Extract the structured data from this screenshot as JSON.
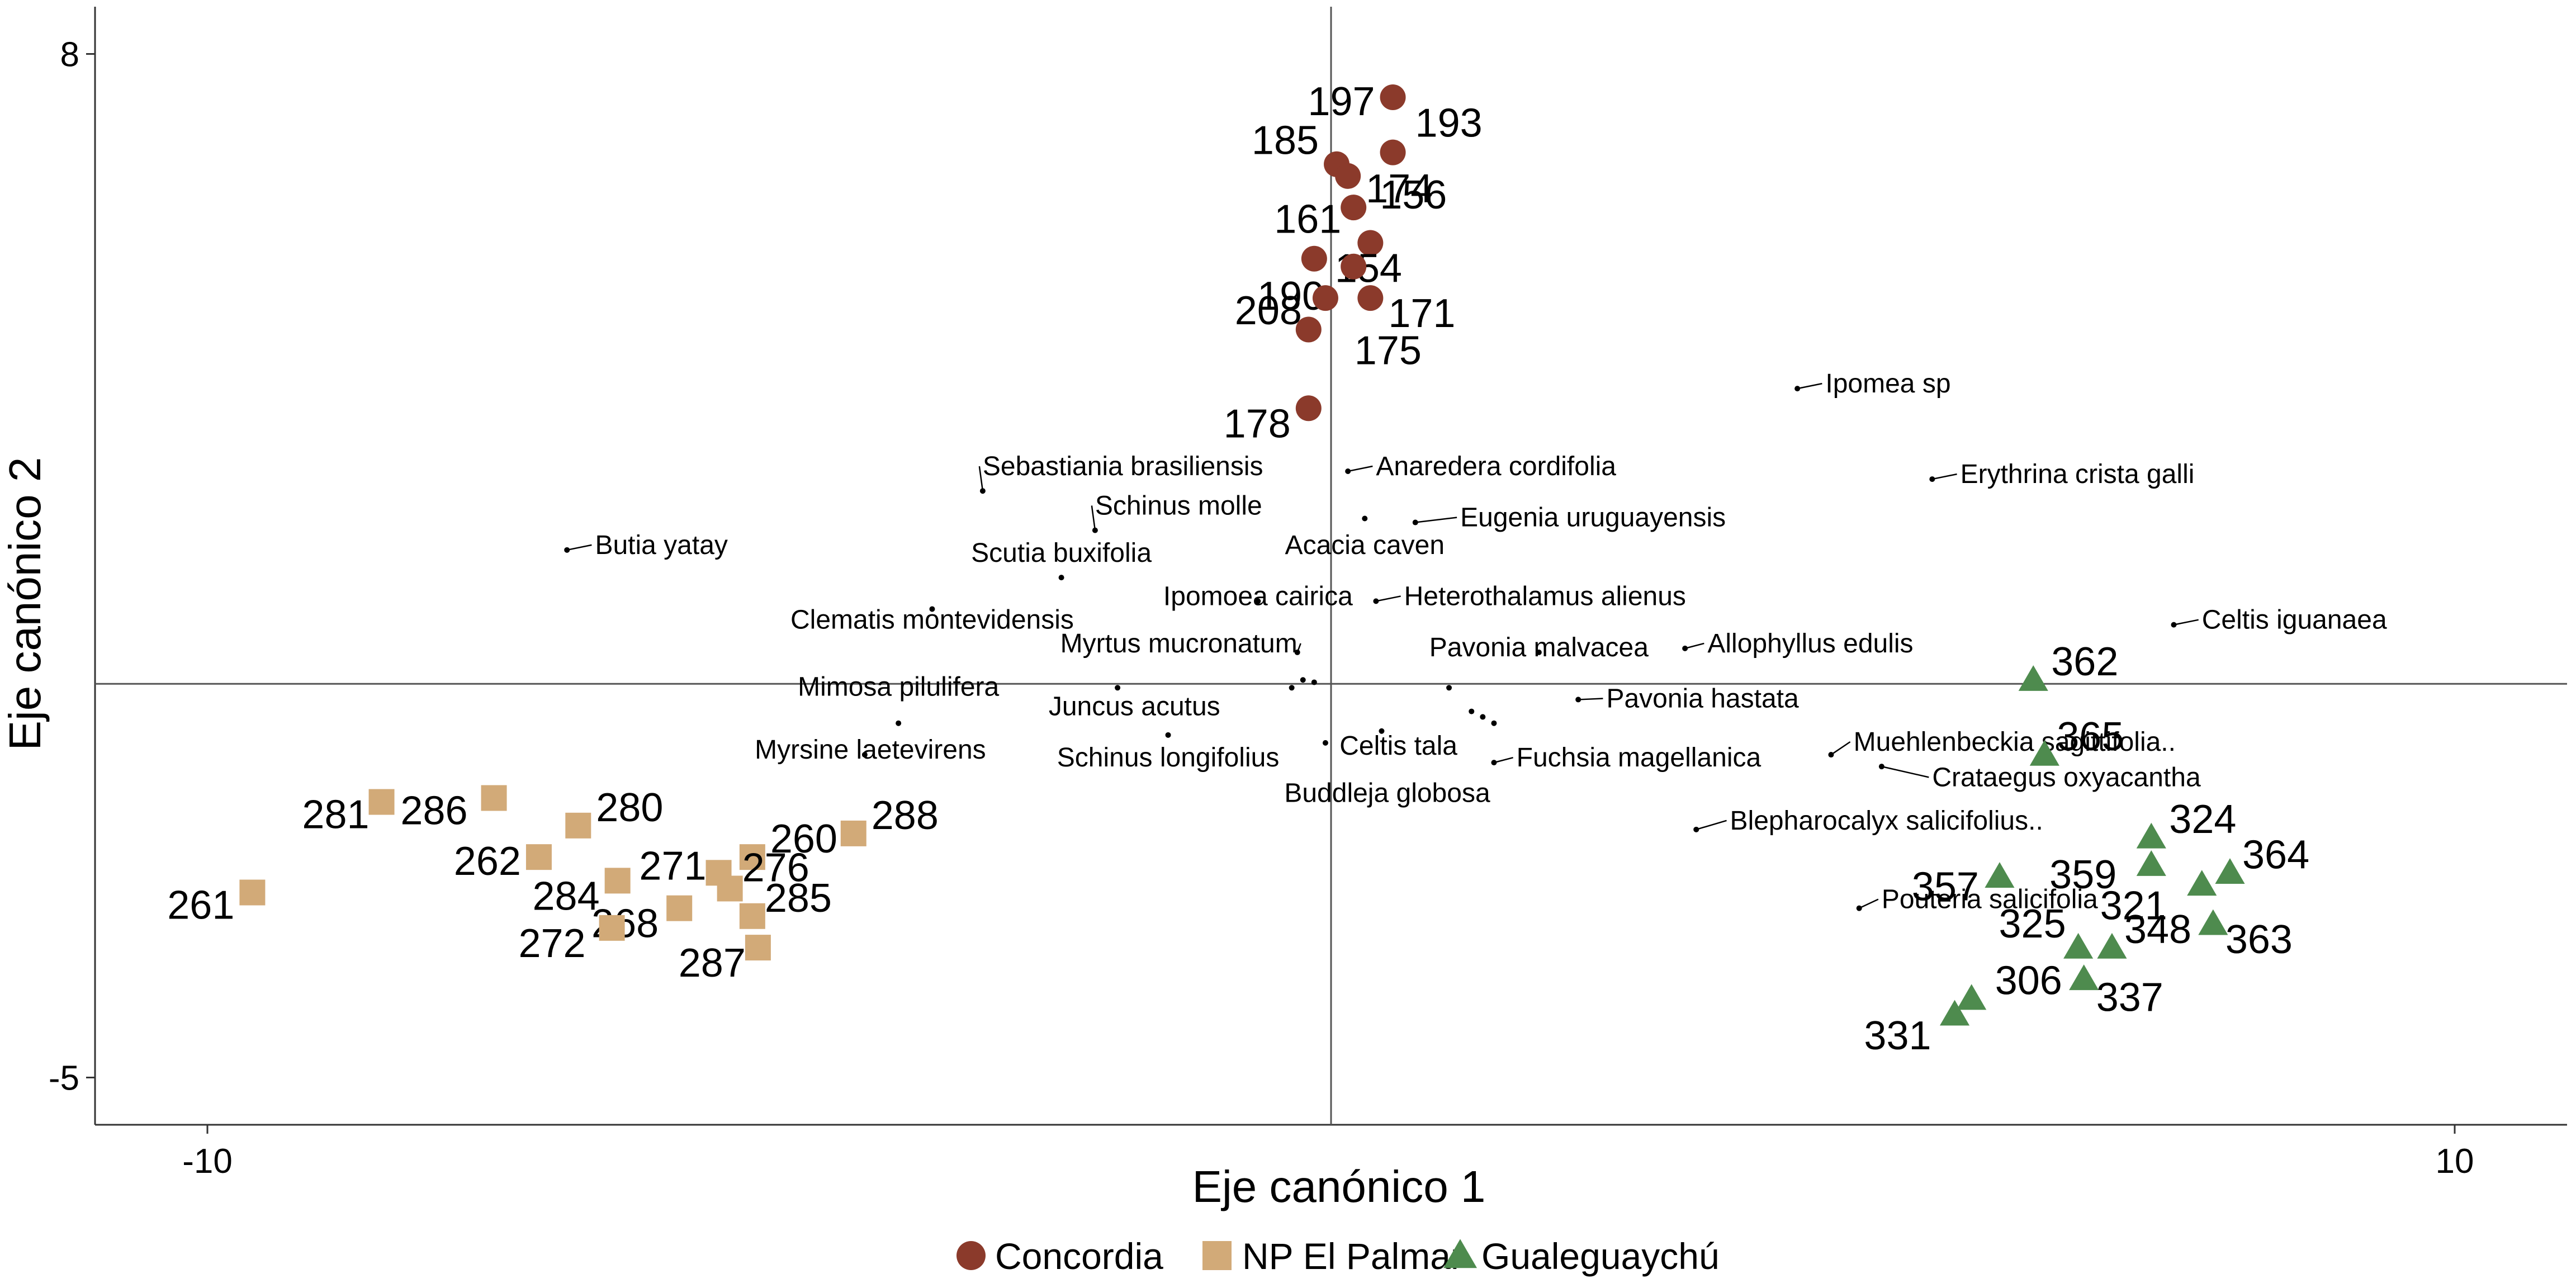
{
  "chart_data": {
    "type": "scatter",
    "title": "",
    "xlabel": "Eje canónico 1",
    "ylabel": "Eje canónico 2",
    "xlim": [
      -11,
      11
    ],
    "ylim": [
      -5.6,
      8.6
    ],
    "xticks": [
      {
        "v": -10,
        "label": "-10"
      },
      {
        "v": 10,
        "label": "10"
      }
    ],
    "yticks": [
      {
        "v": 8,
        "label": "8"
      },
      {
        "v": -5,
        "label": "-5"
      }
    ],
    "reference_lines": {
      "x": 0,
      "y": 0
    },
    "grid": false,
    "legend_position": "bottom",
    "series": [
      {
        "name": "Concordia",
        "color": "#8b3a2b",
        "marker": "circle",
        "points": [
          {
            "label": "197",
            "x": 0.55,
            "y": 7.45
          },
          {
            "label": "193",
            "x": 0.55,
            "y": 6.75
          },
          {
            "label": "185",
            "x": 0.05,
            "y": 6.6
          },
          {
            "label": "174",
            "x": 0.15,
            "y": 6.45
          },
          {
            "label": "156",
            "x": 0.2,
            "y": 6.05
          },
          {
            "label": "161",
            "x": 0.35,
            "y": 5.6
          },
          {
            "label": "154",
            "x": -0.15,
            "y": 5.4
          },
          {
            "label": "190",
            "x": 0.2,
            "y": 5.3
          },
          {
            "label": "171",
            "x": 0.35,
            "y": 4.9
          },
          {
            "label": "208",
            "x": -0.05,
            "y": 4.9
          },
          {
            "label": "175",
            "x": -0.2,
            "y": 4.5
          },
          {
            "label": "178",
            "x": -0.2,
            "y": 3.5
          }
        ]
      },
      {
        "name": "NP El Palmar",
        "color": "#d2aa78",
        "marker": "square",
        "points": [
          {
            "label": "281",
            "x": -8.45,
            "y": -1.5
          },
          {
            "label": "286",
            "x": -7.45,
            "y": -1.45
          },
          {
            "label": "280",
            "x": -6.7,
            "y": -1.8
          },
          {
            "label": "262",
            "x": -7.05,
            "y": -2.2
          },
          {
            "label": "261",
            "x": -9.6,
            "y": -2.65
          },
          {
            "label": "284",
            "x": -6.35,
            "y": -2.5
          },
          {
            "label": "271",
            "x": -5.45,
            "y": -2.4
          },
          {
            "label": "260",
            "x": -5.15,
            "y": -2.2
          },
          {
            "label": "288",
            "x": -4.25,
            "y": -1.9
          },
          {
            "label": "276",
            "x": -5.35,
            "y": -2.6
          },
          {
            "label": "268",
            "x": -5.8,
            "y": -2.85
          },
          {
            "label": "272",
            "x": -6.4,
            "y": -3.1
          },
          {
            "label": "285",
            "x": -5.15,
            "y": -2.95
          },
          {
            "label": "287",
            "x": -5.1,
            "y": -3.35
          }
        ]
      },
      {
        "name": "Gualeguaychú",
        "color": "#4e8b4e",
        "marker": "triangle",
        "points": [
          {
            "label": "362",
            "x": 6.25,
            "y": 0.05
          },
          {
            "label": "365",
            "x": 6.35,
            "y": -0.9
          },
          {
            "label": "324",
            "x": 7.3,
            "y": -1.95
          },
          {
            "label": "359",
            "x": 7.3,
            "y": -2.3
          },
          {
            "label": "364",
            "x": 8.0,
            "y": -2.4
          },
          {
            "label": "357",
            "x": 5.95,
            "y": -2.45
          },
          {
            "label": "321",
            "x": 7.75,
            "y": -2.55
          },
          {
            "label": "363",
            "x": 7.85,
            "y": -3.05
          },
          {
            "label": "348",
            "x": 6.95,
            "y": -3.35
          },
          {
            "label": "325",
            "x": 6.65,
            "y": -3.35
          },
          {
            "label": "337",
            "x": 6.7,
            "y": -3.75
          },
          {
            "label": "306",
            "x": 5.7,
            "y": -4.0
          },
          {
            "label": "331",
            "x": 5.55,
            "y": -4.2
          }
        ]
      }
    ],
    "species": [
      {
        "label": "Ipomea sp",
        "x": 4.15,
        "y": 3.75,
        "text_x": 4.4,
        "text_y": 3.7,
        "anchor": "start"
      },
      {
        "label": "Erythrina crista galli",
        "x": 5.35,
        "y": 2.6,
        "text_x": 5.6,
        "text_y": 2.55,
        "anchor": "start"
      },
      {
        "label": "Celtis iguanaea",
        "x": 7.5,
        "y": 0.75,
        "text_x": 7.75,
        "text_y": 0.7,
        "anchor": "start"
      },
      {
        "label": "Sebastiania brasiliensis",
        "x": -3.1,
        "y": 2.45,
        "text_x": -3.1,
        "text_y": 2.65,
        "anchor": "start"
      },
      {
        "label": "Anaredera cordifolia",
        "x": 0.15,
        "y": 2.7,
        "text_x": 0.4,
        "text_y": 2.65,
        "anchor": "start"
      },
      {
        "label": "Schinus molle",
        "x": -2.1,
        "y": 1.95,
        "text_x": -2.1,
        "text_y": 2.15,
        "anchor": "start"
      },
      {
        "label": "Eugenia uruguayensis",
        "x": 0.75,
        "y": 2.05,
        "text_x": 1.15,
        "text_y": 2.0,
        "anchor": "start"
      },
      {
        "label": "Acacia caven",
        "x": 0.3,
        "y": 2.1,
        "text_x": 0.3,
        "text_y": 1.65,
        "anchor": "middle"
      },
      {
        "label": "Butia yatay",
        "x": -6.8,
        "y": 1.7,
        "text_x": -6.55,
        "text_y": 1.65,
        "anchor": "start"
      },
      {
        "label": "Scutia buxifolia",
        "x": -2.4,
        "y": 1.35,
        "text_x": -2.4,
        "text_y": 1.55,
        "anchor": "middle"
      },
      {
        "label": "Ipomoea cairica",
        "x": -0.65,
        "y": 1.05,
        "text_x": -0.65,
        "text_y": 1.0,
        "anchor": "middle"
      },
      {
        "label": "Heterothalamus alienus",
        "x": 0.4,
        "y": 1.05,
        "text_x": 0.65,
        "text_y": 1.0,
        "anchor": "start"
      },
      {
        "label": "Clematis montevidensis",
        "x": -3.55,
        "y": 0.95,
        "text_x": -3.55,
        "text_y": 0.7,
        "anchor": "middle"
      },
      {
        "label": "Allophyllus edulis",
        "x": 3.15,
        "y": 0.45,
        "text_x": 3.35,
        "text_y": 0.4,
        "anchor": "start"
      },
      {
        "label": "Myrtus mucronatum",
        "x": -0.3,
        "y": 0.4,
        "text_x": -0.3,
        "text_y": 0.4,
        "anchor": "end"
      },
      {
        "label": "Pavonia malvacea",
        "x": 1.85,
        "y": 0.4,
        "text_x": 1.85,
        "text_y": 0.35,
        "anchor": "middle"
      },
      {
        "label": "Mimosa pilulifera",
        "x": -3.85,
        "y": -0.5,
        "text_x": -3.85,
        "text_y": -0.15,
        "anchor": "middle"
      },
      {
        "label": "Pavonia hastata",
        "x": 2.2,
        "y": -0.2,
        "text_x": 2.45,
        "text_y": -0.3,
        "anchor": "start"
      },
      {
        "label": "Juncus acutus",
        "x": -1.9,
        "y": -0.05,
        "text_x": -1.75,
        "text_y": -0.4,
        "anchor": "middle"
      },
      {
        "label": "Myrsine laetevirens",
        "x": -4.15,
        "y": -0.9,
        "text_x": -4.1,
        "text_y": -0.95,
        "anchor": "middle"
      },
      {
        "label": "Schinus longifolius",
        "x": -1.45,
        "y": -0.65,
        "text_x": -1.45,
        "text_y": -1.05,
        "anchor": "middle"
      },
      {
        "label": "Celtis tala",
        "x": 0.45,
        "y": -0.6,
        "text_x": 0.6,
        "text_y": -0.9,
        "anchor": "middle"
      },
      {
        "label": "Fuchsia magellanica",
        "x": 1.45,
        "y": -1.0,
        "text_x": 1.65,
        "text_y": -1.05,
        "anchor": "start"
      },
      {
        "label": "Muehlenbeckia sagittifolia..",
        "x": 4.45,
        "y": -0.9,
        "text_x": 4.65,
        "text_y": -0.85,
        "anchor": "start"
      },
      {
        "label": "Crataegus oxyacantha",
        "x": 4.9,
        "y": -1.05,
        "text_x": 5.35,
        "text_y": -1.3,
        "anchor": "start"
      },
      {
        "label": "Buddleja globosa",
        "x": -0.05,
        "y": -0.75,
        "text_x": 0.5,
        "text_y": -1.5,
        "anchor": "middle"
      },
      {
        "label": "Blepharocalyx salicifolius..",
        "x": 3.25,
        "y": -1.85,
        "text_x": 3.55,
        "text_y": -1.85,
        "anchor": "start"
      },
      {
        "label": "Pouteria salicifolia",
        "x": 4.7,
        "y": -2.85,
        "text_x": 4.9,
        "text_y": -2.85,
        "anchor": "start"
      }
    ],
    "species_dots": [
      {
        "x": -0.35,
        "y": -0.05
      },
      {
        "x": -0.25,
        "y": 0.05
      },
      {
        "x": -0.15,
        "y": 0.02
      },
      {
        "x": 1.05,
        "y": -0.05
      },
      {
        "x": 1.25,
        "y": -0.35
      },
      {
        "x": 1.35,
        "y": -0.42
      },
      {
        "x": 1.45,
        "y": -0.5
      }
    ]
  }
}
